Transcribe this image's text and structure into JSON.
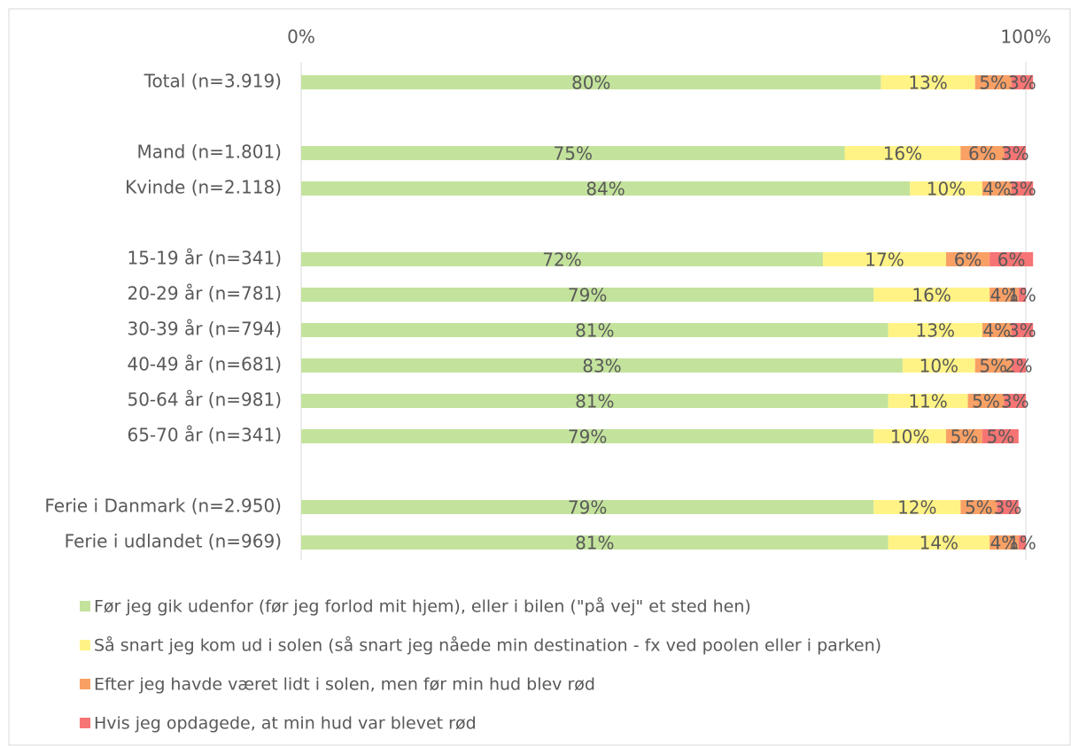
{
  "chart_data": {
    "type": "stacked-bar-horizontal",
    "categories": [
      "Total (n=3.919)",
      null,
      "Mand (n=1.801)",
      "Kvinde (n=2.118)",
      null,
      "15-19 år (n=341)",
      "20-29 år (n=781)",
      "30-39 år (n=794)",
      "40-49 år (n=681)",
      "50-64 år (n=981)",
      "65-70 år (n=341)",
      null,
      "Ferie i Danmark (n=2.950)",
      "Ferie i udlandet (n=969)"
    ],
    "series": [
      {
        "name": "Før jeg gik udenfor (før jeg forlod mit hjem), eller i bilen (\"på vej\" et sted hen)",
        "color": "#c3e39c",
        "values": [
          80,
          null,
          75,
          84,
          null,
          72,
          79,
          81,
          83,
          81,
          79,
          null,
          79,
          81
        ],
        "value_labels": [
          "80%",
          null,
          "75%",
          "84%",
          null,
          "72%",
          "79%",
          "81%",
          "83%",
          "81%",
          "79%",
          null,
          "79%",
          "81%"
        ]
      },
      {
        "name": "Så snart jeg kom ud i solen (så snart jeg nåede min destination - fx ved poolen eller i parken)",
        "color": "#fff386",
        "values": [
          13,
          null,
          16,
          10,
          null,
          17,
          16,
          13,
          10,
          11,
          10,
          null,
          12,
          14
        ],
        "value_labels": [
          "13%",
          null,
          "16%",
          "10%",
          null,
          "17%",
          "16%",
          "13%",
          "10%",
          "11%",
          "10%",
          null,
          "12%",
          "14%"
        ]
      },
      {
        "name": "Efter jeg havde været lidt i solen, men før min hud blev rød",
        "color": "#f9a065",
        "values": [
          5,
          null,
          6,
          4,
          null,
          6,
          4,
          4,
          5,
          5,
          5,
          null,
          5,
          4
        ],
        "value_labels": [
          "5%",
          null,
          "6%",
          "4%",
          null,
          "6%",
          "4%",
          "4%",
          "5%",
          "5%",
          "5%",
          null,
          "5%",
          "4%"
        ]
      },
      {
        "name": "Hvis jeg opdagede, at min hud var blevet rød",
        "color": "#f77474",
        "values": [
          3,
          null,
          3,
          3,
          null,
          6,
          1,
          3,
          2,
          3,
          5,
          null,
          3,
          1
        ],
        "value_labels": [
          "3%",
          null,
          "3%",
          "3%",
          null,
          "6%",
          "1%",
          "3%",
          "2%",
          "3%",
          "5%",
          null,
          "3%",
          "1%"
        ]
      }
    ],
    "xlim": [
      0,
      100
    ],
    "xticks": [
      {
        "value": 0,
        "label": "0%"
      },
      {
        "value": 100,
        "label": "100%"
      }
    ],
    "grid": true,
    "legend": "bottom"
  }
}
